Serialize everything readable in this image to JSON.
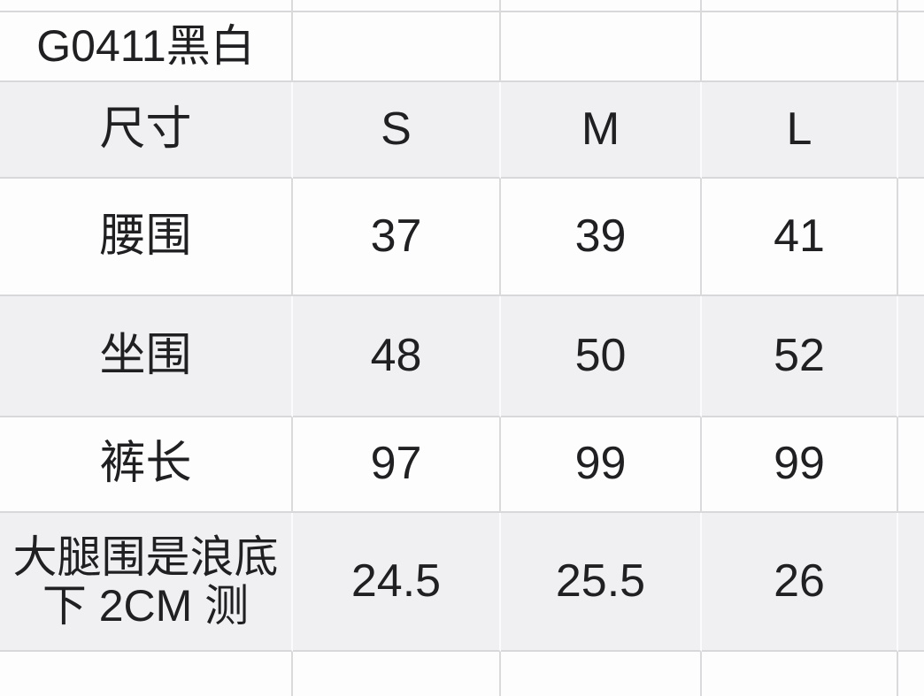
{
  "product_code": "G0411黑白",
  "header": {
    "label": "尺寸",
    "s": "S",
    "m": "M",
    "l": "L"
  },
  "rows": {
    "waist": {
      "label": "腰围",
      "s": "37",
      "m": "39",
      "l": "41"
    },
    "hip": {
      "label": "坐围",
      "s": "48",
      "m": "50",
      "l": "52"
    },
    "pant_length": {
      "label": "裤长",
      "s": "97",
      "m": "99",
      "l": "99"
    },
    "thigh": {
      "label_line1": "大腿围是浪底",
      "label_line2": "下 2CM 测",
      "s": "24.5",
      "m": "25.5",
      "l": "26"
    }
  },
  "chart_data": {
    "type": "table",
    "title": "G0411黑白",
    "columns": [
      "尺寸",
      "S",
      "M",
      "L"
    ],
    "rows": [
      [
        "腰围",
        37,
        39,
        41
      ],
      [
        "坐围",
        48,
        50,
        52
      ],
      [
        "裤长",
        97,
        99,
        99
      ],
      [
        "大腿围是浪底下 2CM 测",
        24.5,
        25.5,
        26
      ]
    ]
  },
  "colors": {
    "row_bg_white": "#fdfdfd",
    "row_bg_gray": "#f0f0f2",
    "grid_line": "#d8d8da",
    "text": "#202022"
  }
}
